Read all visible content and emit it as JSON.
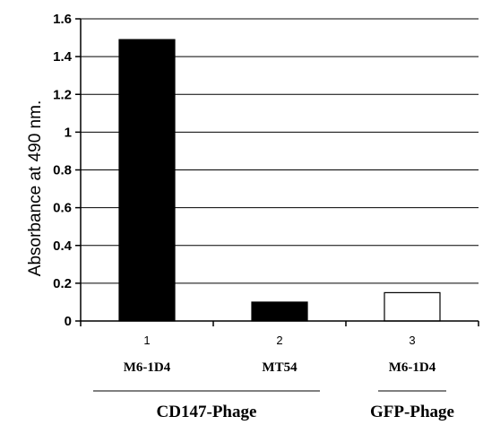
{
  "chart_data": {
    "type": "bar",
    "ylabel": "Absorbance at 490 nm.",
    "ylim": [
      0,
      1.6
    ],
    "ytick_step": 0.2,
    "ytick_labels": [
      "0",
      "0.2",
      "0.4",
      "0.6",
      "0.8",
      "1",
      "1.2",
      "1.4",
      "1.6"
    ],
    "categories": [
      "1",
      "2",
      "3"
    ],
    "values": [
      1.49,
      0.1,
      0.15
    ],
    "sample_labels": [
      "M6-1D4",
      "MT54",
      "M6-1D4"
    ],
    "bar_fills": [
      "#000000",
      "#000000",
      "#ffffff"
    ],
    "groups": [
      {
        "label": "CD147-Phage",
        "categories": [
          0,
          1
        ]
      },
      {
        "label": "GFP-Phage",
        "categories": [
          2
        ]
      }
    ],
    "grid": true
  }
}
